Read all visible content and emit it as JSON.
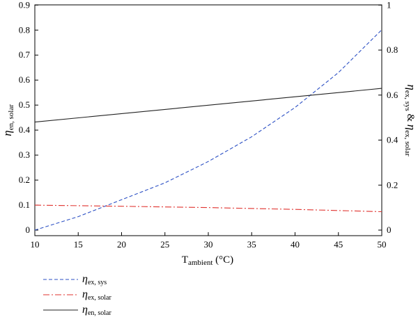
{
  "chart_data": {
    "type": "line",
    "xlabel": {
      "main": "T",
      "sub": "ambient",
      "unit": " (°C)"
    },
    "ylabel_left": {
      "main": "η",
      "sub": "en, solar"
    },
    "ylabel_right": {
      "main1": "η",
      "sub1": "ex, sys",
      "amp": " & ",
      "main2": "η",
      "sub2": "ex, solar"
    },
    "xlim": [
      10,
      50
    ],
    "ylim_left": [
      0,
      0.9
    ],
    "ylim_right": [
      0,
      1
    ],
    "x_ticks": [
      10,
      15,
      20,
      25,
      30,
      35,
      40,
      45,
      50
    ],
    "y_left_ticks": [
      "0",
      "0.1",
      "0.2",
      "0.3",
      "0.4",
      "0.5",
      "0.6",
      "0.7",
      "0.8",
      "0.9"
    ],
    "y_right_ticks": [
      "0",
      "0.2",
      "0.4",
      "0.6",
      "0.8",
      "1"
    ],
    "series": [
      {
        "name": "η ex, sys",
        "main": "η",
        "sub": "ex, sys",
        "axis": "right",
        "color": "#2b4fc4",
        "dash": "5,3",
        "x": [
          10,
          15,
          20,
          25,
          30,
          35,
          40,
          45,
          50
        ],
        "y": [
          0.0,
          0.06,
          0.135,
          0.21,
          0.305,
          0.415,
          0.545,
          0.7,
          0.89
        ]
      },
      {
        "name": "η ex, solar",
        "main": "η",
        "sub": "ex, solar",
        "axis": "right",
        "color": "#e0332f",
        "dash": "9,3,2,3",
        "x": [
          10,
          20,
          30,
          40,
          50
        ],
        "y": [
          0.111,
          0.106,
          0.1,
          0.092,
          0.082
        ]
      },
      {
        "name": "η en, solar",
        "main": "η",
        "sub": "en, solar",
        "axis": "left",
        "color": "#222222",
        "dash": "",
        "x": [
          10,
          50
        ],
        "y": [
          0.432,
          0.567
        ]
      }
    ],
    "grid": false,
    "legend_position": "bottom-left"
  }
}
